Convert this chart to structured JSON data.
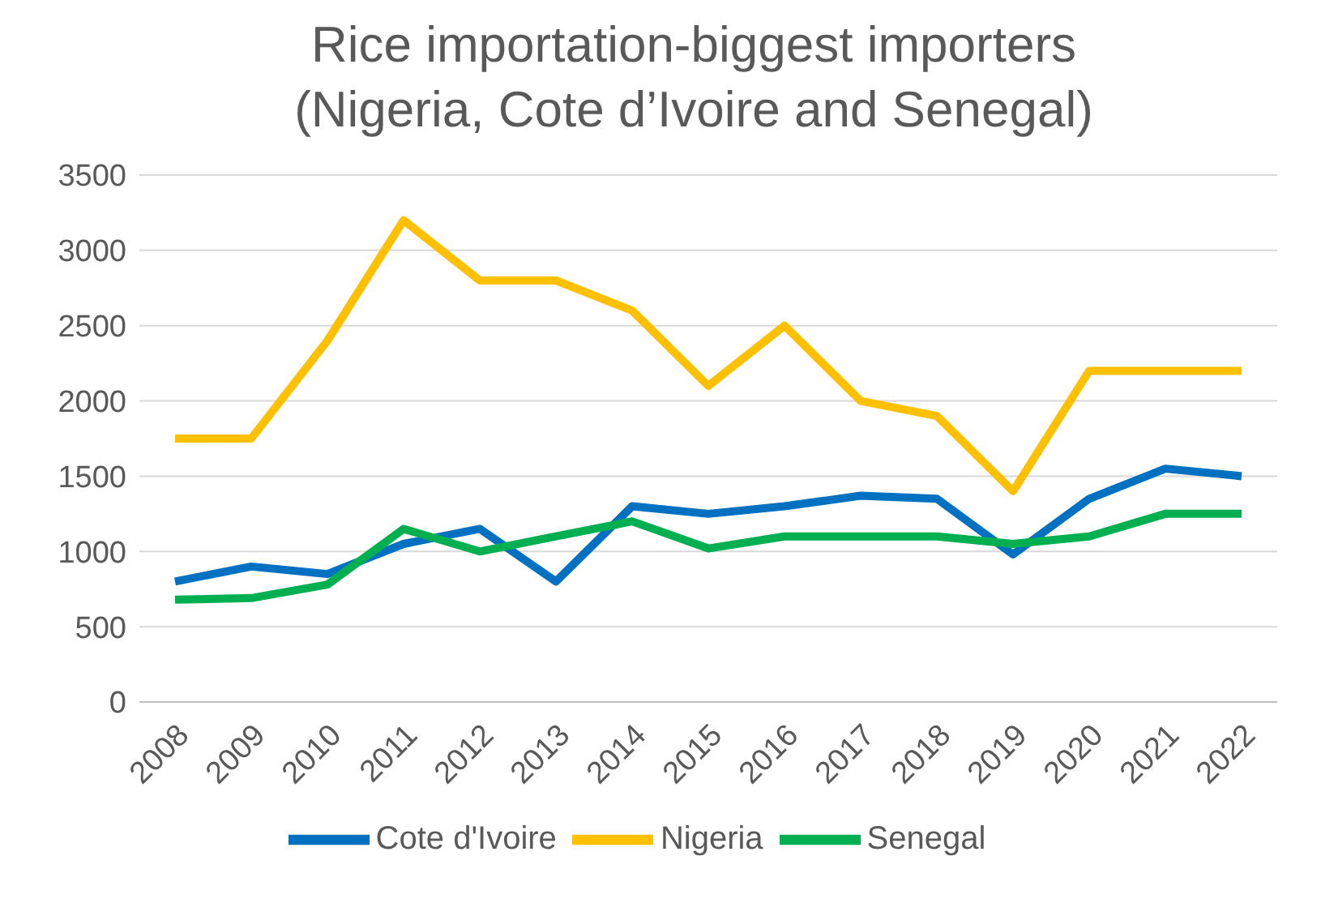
{
  "chart_data": {
    "type": "line",
    "title": "Rice importation-biggest importers\n(Nigeria, Cote d’Ivoire and Senegal)",
    "categories": [
      "2008",
      "2009",
      "2010",
      "2011",
      "2012",
      "2013",
      "2014",
      "2015",
      "2016",
      "2017",
      "2018",
      "2019",
      "2020",
      "2021",
      "2022"
    ],
    "series": [
      {
        "name": "Cote d'Ivoire",
        "color": "#0070c0",
        "values": [
          800,
          900,
          850,
          1050,
          1150,
          800,
          1300,
          1250,
          1300,
          1370,
          1350,
          980,
          1350,
          1550,
          1500
        ]
      },
      {
        "name": "Nigeria",
        "color": "#ffc000",
        "values": [
          1750,
          1750,
          2400,
          3200,
          2800,
          2800,
          2600,
          2100,
          2500,
          2000,
          1900,
          1400,
          2200,
          2200,
          2200
        ]
      },
      {
        "name": "Senegal",
        "color": "#00b050",
        "values": [
          680,
          690,
          780,
          1150,
          1000,
          1100,
          1200,
          1020,
          1100,
          1100,
          1100,
          1050,
          1100,
          1250,
          1250
        ]
      }
    ],
    "ylim": [
      0,
      3500
    ],
    "yticks": [
      0,
      500,
      1000,
      1500,
      2000,
      2500,
      3000,
      3500
    ],
    "grid": "y",
    "legend": "bottom",
    "marker": "none",
    "line_style": "solid"
  }
}
